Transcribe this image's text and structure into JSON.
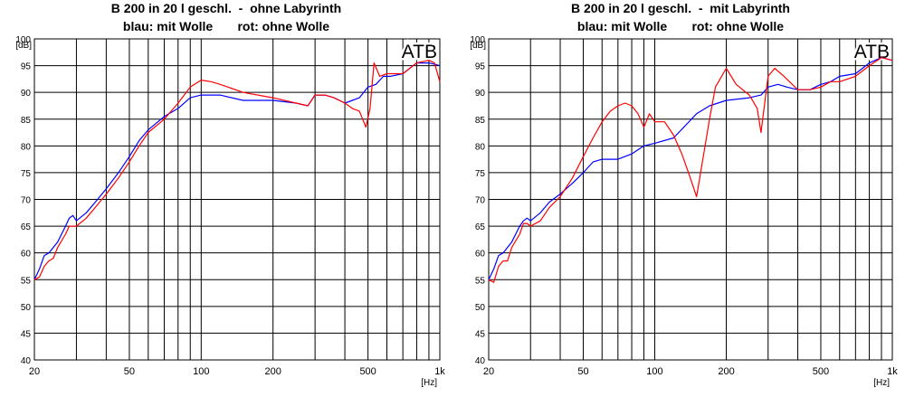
{
  "chart_data": [
    {
      "type": "line",
      "title": "B 200 in 20 l geschl.  -  ohne Labyrinth",
      "subtitle": "blau: mit Wolle       rot: ohne Wolle",
      "watermark": "ATB",
      "ylabel": "[dB]",
      "xlabel": "[Hz]",
      "x_scale": "log",
      "xlim": [
        20,
        1000
      ],
      "ylim": [
        40,
        100
      ],
      "x_ticks": [
        20,
        50,
        100,
        200,
        500,
        1000
      ],
      "x_tick_labels": [
        "20",
        "50",
        "100",
        "200",
        "500",
        "1k"
      ],
      "y_ticks": [
        40,
        45,
        50,
        55,
        60,
        65,
        70,
        75,
        80,
        85,
        90,
        95,
        100
      ],
      "y_tick_labels": [
        "40",
        "45",
        "50",
        "55",
        "60",
        "65",
        "70",
        "75",
        "80",
        "85",
        "90",
        "95",
        "100"
      ],
      "grid": true,
      "series": [
        {
          "name": "blau: mit Wolle",
          "color": "#0000ff",
          "x": [
            20,
            21,
            22,
            23,
            25,
            27,
            28,
            29,
            30,
            33,
            36,
            40,
            45,
            50,
            55,
            60,
            70,
            80,
            90,
            100,
            120,
            150,
            200,
            250,
            280,
            300,
            330,
            360,
            400,
            430,
            460,
            500,
            540,
            580,
            620,
            700,
            800,
            900,
            1000
          ],
          "y": [
            55,
            57,
            59.5,
            60,
            62,
            65,
            66.5,
            67,
            66,
            67.5,
            69.5,
            72,
            75,
            78,
            81,
            83,
            85.5,
            87,
            89,
            89.5,
            89.5,
            88.5,
            88.5,
            88,
            87.5,
            89.5,
            89.5,
            89,
            88,
            88.5,
            89,
            91,
            91.5,
            93,
            93,
            93.5,
            95.5,
            95.5,
            95
          ]
        },
        {
          "name": "rot: ohne Wolle",
          "color": "#ff0000",
          "x": [
            20,
            21,
            22,
            23,
            24,
            25,
            27,
            28,
            29,
            30,
            33,
            36,
            40,
            45,
            50,
            55,
            60,
            70,
            80,
            90,
            100,
            110,
            120,
            150,
            200,
            250,
            280,
            300,
            330,
            360,
            400,
            430,
            460,
            490,
            510,
            530,
            560,
            600,
            650,
            700,
            800,
            900,
            950,
            1000
          ],
          "y": [
            55,
            55.5,
            57.5,
            58.5,
            59,
            61,
            63.5,
            65,
            65,
            65,
            66.5,
            68.5,
            71,
            74,
            77,
            80,
            82.5,
            85,
            88,
            91,
            92.3,
            92,
            91.5,
            90,
            89,
            88,
            87.5,
            89.5,
            89.5,
            89,
            88,
            87,
            86.5,
            83.5,
            87,
            95.5,
            93,
            93.5,
            93.5,
            93.5,
            95.5,
            96,
            95.5,
            92
          ]
        }
      ]
    },
    {
      "type": "line",
      "title": "B 200 in 20 l geschl.  -  mit Labyrinth",
      "subtitle": "blau: mit Wolle       rot: ohne Wolle",
      "watermark": "ATB",
      "ylabel": "[dB]",
      "xlabel": "[Hz]",
      "x_scale": "log",
      "xlim": [
        20,
        1000
      ],
      "ylim": [
        40,
        100
      ],
      "x_ticks": [
        20,
        50,
        100,
        200,
        500,
        1000
      ],
      "x_tick_labels": [
        "20",
        "50",
        "100",
        "200",
        "500",
        "1k"
      ],
      "y_ticks": [
        40,
        45,
        50,
        55,
        60,
        65,
        70,
        75,
        80,
        85,
        90,
        95,
        100
      ],
      "y_tick_labels": [
        "40",
        "45",
        "50",
        "55",
        "60",
        "65",
        "70",
        "75",
        "80",
        "85",
        "90",
        "95",
        "100"
      ],
      "grid": true,
      "series": [
        {
          "name": "blau: mit Wolle",
          "color": "#0000ff",
          "x": [
            20,
            21,
            22,
            23,
            25,
            27,
            28,
            29,
            30,
            33,
            36,
            40,
            45,
            50,
            55,
            60,
            70,
            80,
            90,
            100,
            120,
            150,
            170,
            200,
            250,
            280,
            300,
            330,
            360,
            400,
            450,
            500,
            550,
            600,
            700,
            800,
            900,
            1000
          ],
          "y": [
            55,
            57,
            59.5,
            60,
            62,
            65,
            66,
            66.5,
            66,
            67.5,
            69.5,
            71,
            73,
            75,
            77,
            77.5,
            77.5,
            78.5,
            80,
            80.5,
            81.5,
            86,
            87.5,
            88.5,
            89,
            89.5,
            91,
            91.5,
            91,
            90.5,
            90.5,
            91.5,
            92,
            93,
            93.5,
            95.5,
            96.5,
            96
          ]
        },
        {
          "name": "rot: ohne Wolle",
          "color": "#ff0000",
          "x": [
            20,
            21,
            22,
            23,
            24,
            25,
            27,
            28,
            29,
            30,
            33,
            36,
            40,
            45,
            50,
            55,
            60,
            65,
            70,
            75,
            80,
            85,
            90,
            95,
            100,
            110,
            120,
            130,
            140,
            150,
            160,
            170,
            180,
            200,
            220,
            250,
            270,
            280,
            300,
            320,
            350,
            400,
            450,
            500,
            550,
            600,
            700,
            800,
            900,
            1000
          ],
          "y": [
            55,
            54.5,
            57.5,
            58.5,
            58.5,
            61,
            63.5,
            65.5,
            65.5,
            65,
            66,
            68.5,
            70.5,
            74,
            78,
            81.5,
            84.5,
            86.5,
            87.5,
            88,
            87.5,
            86,
            83.5,
            86,
            84.5,
            84.5,
            82,
            78.5,
            74.5,
            70.5,
            78,
            85,
            91,
            94.5,
            91.5,
            89.5,
            87,
            82.5,
            93,
            94.5,
            93,
            90.5,
            90.5,
            91,
            92,
            92,
            93,
            95,
            96.5,
            96
          ]
        }
      ]
    }
  ]
}
